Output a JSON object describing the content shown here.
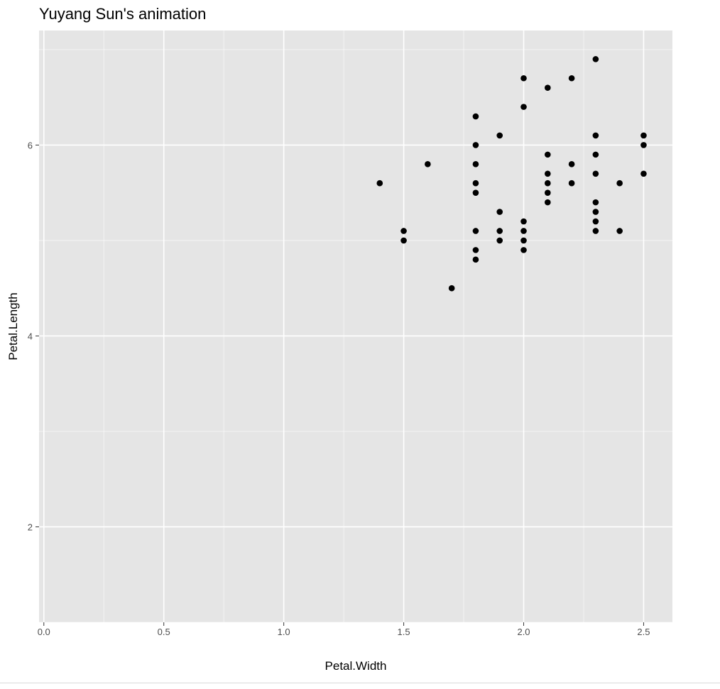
{
  "chart_data": {
    "type": "scatter",
    "title": "Yuyang Sun's animation",
    "xlabel": "Petal.Width",
    "ylabel": "Petal.Length",
    "xlim": [
      -0.02,
      2.62
    ],
    "ylim": [
      1.0,
      7.2
    ],
    "x_ticks": [
      0.0,
      0.5,
      1.0,
      1.5,
      2.0,
      2.5
    ],
    "x_tick_labels": [
      "0.0",
      "0.5",
      "1.0",
      "1.5",
      "2.0",
      "2.5"
    ],
    "y_ticks": [
      2,
      4,
      6
    ],
    "y_tick_labels": [
      "2",
      "4",
      "6"
    ],
    "grid": true,
    "panel_background": "#e5e5e5",
    "grid_color": "#ffffff",
    "point_color": "#000000",
    "points": [
      [
        1.4,
        5.6
      ],
      [
        1.5,
        5.1
      ],
      [
        1.5,
        5.0
      ],
      [
        1.6,
        5.8
      ],
      [
        1.7,
        4.5
      ],
      [
        1.8,
        6.3
      ],
      [
        1.8,
        6.0
      ],
      [
        1.8,
        5.8
      ],
      [
        1.8,
        5.6
      ],
      [
        1.8,
        5.5
      ],
      [
        1.8,
        5.1
      ],
      [
        1.8,
        4.9
      ],
      [
        1.8,
        4.8
      ],
      [
        1.9,
        6.1
      ],
      [
        1.9,
        5.3
      ],
      [
        1.9,
        5.1
      ],
      [
        1.9,
        5.0
      ],
      [
        2.0,
        6.7
      ],
      [
        2.0,
        6.4
      ],
      [
        2.0,
        5.2
      ],
      [
        2.0,
        5.1
      ],
      [
        2.0,
        5.0
      ],
      [
        2.0,
        4.9
      ],
      [
        2.1,
        6.6
      ],
      [
        2.1,
        5.9
      ],
      [
        2.1,
        5.7
      ],
      [
        2.1,
        5.6
      ],
      [
        2.1,
        5.5
      ],
      [
        2.1,
        5.4
      ],
      [
        2.2,
        6.7
      ],
      [
        2.2,
        5.8
      ],
      [
        2.2,
        5.6
      ],
      [
        2.3,
        6.9
      ],
      [
        2.3,
        6.1
      ],
      [
        2.3,
        5.9
      ],
      [
        2.3,
        5.7
      ],
      [
        2.3,
        5.4
      ],
      [
        2.3,
        5.3
      ],
      [
        2.3,
        5.2
      ],
      [
        2.3,
        5.1
      ],
      [
        2.4,
        5.6
      ],
      [
        2.4,
        5.1
      ],
      [
        2.5,
        6.1
      ],
      [
        2.5,
        6.0
      ],
      [
        2.5,
        5.7
      ]
    ]
  }
}
